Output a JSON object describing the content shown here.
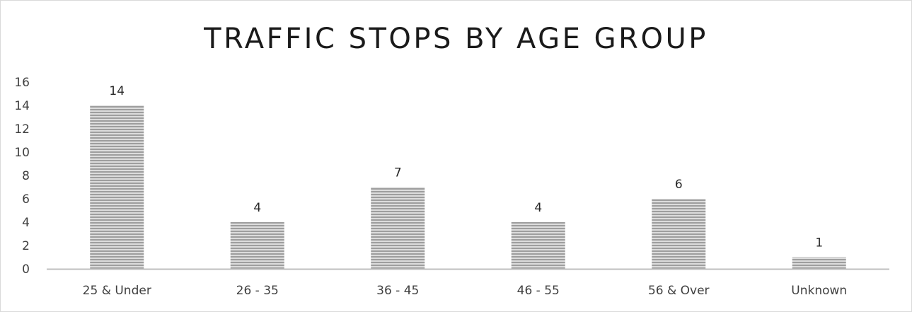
{
  "chart_data": {
    "type": "bar",
    "title": "TRAFFIC STOPS BY AGE GROUP",
    "xlabel": "",
    "ylabel": "",
    "categories": [
      "25 & Under",
      "26 - 35",
      "36 - 45",
      "46 - 55",
      "56 & Over",
      "Unknown"
    ],
    "values": [
      14,
      4,
      7,
      4,
      6,
      1
    ],
    "data_labels": [
      "14",
      "4",
      "7",
      "4",
      "6",
      "1"
    ],
    "ylim": [
      0,
      16
    ],
    "yticks": [
      0,
      2,
      4,
      6,
      8,
      10,
      12,
      14,
      16
    ],
    "ytick_labels": [
      "0",
      "2",
      "4",
      "6",
      "8",
      "10",
      "12",
      "14",
      "16"
    ],
    "grid": false,
    "legend": "none",
    "bar_fill": "horizontal-stripe gray",
    "colors": {
      "bar_light": "#d9d9d9",
      "bar_dark": "#9a9a9a",
      "axis": "#bfbfbf",
      "text": "#404040"
    }
  }
}
